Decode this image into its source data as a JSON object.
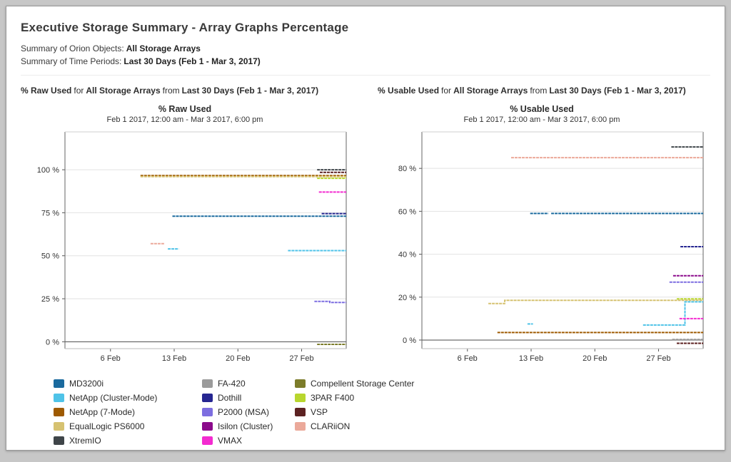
{
  "header": {
    "title": "Executive Storage Summary - Array Graphs Percentage",
    "objects_label": "Summary of Orion Objects:",
    "objects_value": "All Storage Arrays",
    "periods_label": "Summary of Time Periods:",
    "periods_value": "Last 30 Days (Feb 1 - Mar 3, 2017)"
  },
  "sections": [
    {
      "metric": "% Raw Used",
      "for_word": "for",
      "object": "All Storage Arrays",
      "from_word": "from",
      "period": "Last 30 Days (Feb 1 - Mar 3, 2017)"
    },
    {
      "metric": "% Usable Used",
      "for_word": "for",
      "object": "All Storage Arrays",
      "from_word": "from",
      "period": "Last 30 Days (Feb 1 - Mar 3, 2017)"
    }
  ],
  "chart_data": [
    {
      "type": "line",
      "title": "% Raw Used",
      "subtitle": "Feb 1 2017, 12:00 am - Mar 3 2017, 6:00 pm",
      "xlabel": "",
      "ylabel": "",
      "xlim": [
        1,
        31.9
      ],
      "ylim": [
        -4,
        122
      ],
      "grid": true,
      "legend_position": "bottom",
      "x_ticks": [
        {
          "value": 6,
          "label": "6 Feb"
        },
        {
          "value": 13,
          "label": "13 Feb"
        },
        {
          "value": 20,
          "label": "20 Feb"
        },
        {
          "value": 27,
          "label": "27 Feb"
        }
      ],
      "y_ticks": [
        {
          "value": 0,
          "label": "0 %"
        },
        {
          "value": 25,
          "label": "25 %"
        },
        {
          "value": 50,
          "label": "50 %"
        },
        {
          "value": 75,
          "label": "75 %"
        },
        {
          "value": 100,
          "label": "100 %"
        }
      ],
      "series": [
        {
          "name": "XtremIO",
          "color": "#3f4549",
          "segments": [
            [
              [
                28.7,
                100
              ],
              [
                31.9,
                100
              ]
            ]
          ]
        },
        {
          "name": "VSP",
          "color": "#5c2222",
          "segments": [
            [
              [
                29.0,
                98.5
              ],
              [
                31.9,
                98.5
              ]
            ]
          ]
        },
        {
          "name": "NetApp (7-Mode)",
          "color": "#9e5a00",
          "segments": [
            [
              [
                9.3,
                96.6
              ],
              [
                31.9,
                96.6
              ]
            ]
          ]
        },
        {
          "name": "EqualLogic PS6000",
          "color": "#d6c271",
          "segments": [
            [
              [
                9.3,
                96.0
              ],
              [
                31.9,
                96.0
              ]
            ]
          ]
        },
        {
          "name": "3PAR F400",
          "color": "#b8d62e",
          "segments": [
            [
              [
                28.7,
                95.0
              ],
              [
                31.9,
                95.0
              ]
            ]
          ]
        },
        {
          "name": "VMAX",
          "color": "#f32bd0",
          "segments": [
            [
              [
                28.9,
                87
              ],
              [
                31.9,
                87
              ]
            ]
          ]
        },
        {
          "name": "Dothill",
          "color": "#262691",
          "segments": [
            [
              [
                29.2,
                74.5
              ],
              [
                31.9,
                74.5
              ]
            ]
          ]
        },
        {
          "name": "MD3200i",
          "color": "#1a6a9e",
          "segments": [
            [
              [
                12.8,
                73
              ],
              [
                31.9,
                73
              ]
            ]
          ]
        },
        {
          "name": "CLARiiON",
          "color": "#eba99a",
          "segments": [
            [
              [
                10.4,
                57
              ],
              [
                11.9,
                57
              ]
            ]
          ]
        },
        {
          "name": "NetApp (Cluster-Mode)",
          "color": "#4fc3e8",
          "segments": [
            [
              [
                12.3,
                54
              ],
              [
                13.5,
                54
              ]
            ],
            [
              [
                25.5,
                53
              ],
              [
                31.9,
                53
              ]
            ]
          ]
        },
        {
          "name": "P2000 (MSA)",
          "color": "#7d6ee0",
          "segments": [
            [
              [
                28.4,
                23.5
              ],
              [
                30.1,
                23.5
              ],
              [
                30.1,
                22.8
              ],
              [
                31.9,
                22.8
              ]
            ]
          ]
        },
        {
          "name": "Compellent Storage Center",
          "color": "#7c7c2a",
          "segments": [
            [
              [
                28.7,
                -1.5
              ],
              [
                31.9,
                -1.5
              ]
            ]
          ]
        }
      ]
    },
    {
      "type": "line",
      "title": "% Usable Used",
      "subtitle": "Feb 1 2017, 12:00 am - Mar 3 2017, 6:00 pm",
      "xlabel": "",
      "ylabel": "",
      "xlim": [
        1,
        31.9
      ],
      "ylim": [
        -4,
        97
      ],
      "grid": true,
      "legend_position": "bottom",
      "x_ticks": [
        {
          "value": 6,
          "label": "6 Feb"
        },
        {
          "value": 13,
          "label": "13 Feb"
        },
        {
          "value": 20,
          "label": "20 Feb"
        },
        {
          "value": 27,
          "label": "27 Feb"
        }
      ],
      "y_ticks": [
        {
          "value": 0,
          "label": "0 %"
        },
        {
          "value": 20,
          "label": "20 %"
        },
        {
          "value": 40,
          "label": "40 %"
        },
        {
          "value": 60,
          "label": "60 %"
        },
        {
          "value": 80,
          "label": "80 %"
        }
      ],
      "series": [
        {
          "name": "XtremIO",
          "color": "#3f4549",
          "segments": [
            [
              [
                28.4,
                90
              ],
              [
                31.9,
                90
              ]
            ]
          ]
        },
        {
          "name": "CLARiiON",
          "color": "#eba99a",
          "segments": [
            [
              [
                10.8,
                85
              ],
              [
                31.9,
                85
              ]
            ]
          ]
        },
        {
          "name": "MD3200i",
          "color": "#1a6a9e",
          "segments": [
            [
              [
                12.9,
                59
              ],
              [
                14.9,
                59
              ]
            ],
            [
              [
                15.2,
                59
              ],
              [
                31.9,
                59
              ]
            ]
          ]
        },
        {
          "name": "Dothill",
          "color": "#262691",
          "segments": [
            [
              [
                29.4,
                43.5
              ],
              [
                31.9,
                43.5
              ]
            ]
          ]
        },
        {
          "name": "Isilon (Cluster)",
          "color": "#8b0a8b",
          "segments": [
            [
              [
                28.6,
                30
              ],
              [
                31.9,
                30
              ]
            ]
          ]
        },
        {
          "name": "P2000 (MSA)",
          "color": "#7d6ee0",
          "segments": [
            [
              [
                28.2,
                27
              ],
              [
                31.9,
                27
              ]
            ]
          ]
        },
        {
          "name": "3PAR F400",
          "color": "#b8d62e",
          "segments": [
            [
              [
                29.0,
                19.2
              ],
              [
                31.9,
                19.2
              ]
            ]
          ]
        },
        {
          "name": "EqualLogic PS6000",
          "color": "#d6c271",
          "segments": [
            [
              [
                8.3,
                17
              ],
              [
                10.1,
                17
              ],
              [
                10.1,
                18.5
              ],
              [
                31.9,
                18.5
              ]
            ]
          ]
        },
        {
          "name": "NetApp (Cluster-Mode)",
          "color": "#4fc3e8",
          "segments": [
            [
              [
                12.6,
                7.5
              ],
              [
                13.2,
                7.5
              ]
            ],
            [
              [
                25.3,
                7
              ],
              [
                29.9,
                7
              ],
              [
                29.9,
                17.8
              ],
              [
                31.9,
                17.8
              ]
            ]
          ]
        },
        {
          "name": "VMAX",
          "color": "#f32bd0",
          "segments": [
            [
              [
                29.3,
                10
              ],
              [
                31.9,
                10
              ]
            ]
          ]
        },
        {
          "name": "NetApp (7-Mode)",
          "color": "#9e5a00",
          "segments": [
            [
              [
                9.3,
                3.5
              ],
              [
                31.9,
                3.5
              ]
            ]
          ]
        },
        {
          "name": "FA-420",
          "color": "#9b9b9b",
          "segments": [
            [
              [
                28.5,
                0.3
              ],
              [
                31.9,
                0.3
              ]
            ]
          ]
        },
        {
          "name": "VSP",
          "color": "#5c2222",
          "segments": [
            [
              [
                29.0,
                -1.5
              ],
              [
                31.9,
                -1.5
              ]
            ]
          ]
        }
      ]
    }
  ],
  "legend": {
    "columns": [
      [
        {
          "name": "MD3200i",
          "color": "#1a6a9e"
        },
        {
          "name": "NetApp (Cluster-Mode)",
          "color": "#4fc3e8"
        },
        {
          "name": "NetApp (7-Mode)",
          "color": "#9e5a00"
        },
        {
          "name": "EqualLogic PS6000",
          "color": "#d6c271"
        },
        {
          "name": "XtremIO",
          "color": "#3f4549"
        }
      ],
      [
        {
          "name": "FA-420",
          "color": "#9b9b9b"
        },
        {
          "name": "Dothill",
          "color": "#262691"
        },
        {
          "name": "P2000 (MSA)",
          "color": "#7d6ee0"
        },
        {
          "name": "Isilon (Cluster)",
          "color": "#8b0a8b"
        },
        {
          "name": "VMAX",
          "color": "#f32bd0"
        }
      ],
      [
        {
          "name": "Compellent Storage Center",
          "color": "#7c7c2a"
        },
        {
          "name": "3PAR F400",
          "color": "#b8d62e"
        },
        {
          "name": "VSP",
          "color": "#5c2222"
        },
        {
          "name": "CLARiiON",
          "color": "#eba99a"
        }
      ]
    ]
  }
}
